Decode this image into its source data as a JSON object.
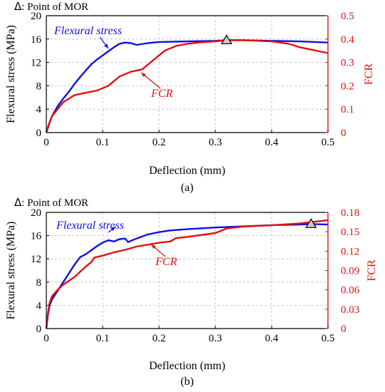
{
  "chart_data": [
    {
      "type": "line",
      "panel_label": "(a)",
      "annotation": {
        "symbol": "Δ",
        "text": ": Point of MOR"
      },
      "xlabel": "Deflection  (mm)",
      "ylabel": "Flexural  stress (MPa)",
      "y2label": "FCR",
      "xlim": [
        0,
        0.5
      ],
      "ylim": [
        0,
        20
      ],
      "y2lim": [
        0,
        0.5
      ],
      "xticks": [
        0,
        0.1,
        0.2,
        0.3,
        0.4,
        0.5
      ],
      "xtick_labels": [
        "0",
        "0.1",
        "0.2",
        "0.3",
        "0.4",
        "0.5"
      ],
      "yticks": [
        0,
        4,
        8,
        12,
        16,
        20
      ],
      "ytick_labels": [
        "0",
        "4",
        "8",
        "12",
        "16",
        "20"
      ],
      "y2ticks": [
        0,
        0.1,
        0.2,
        0.3,
        0.4,
        0.5
      ],
      "y2tick_labels": [
        "0",
        "0.1",
        "0.2",
        "0.3",
        "0.4",
        "0.5"
      ],
      "grid": true,
      "series": [
        {
          "name": "Flexural stress",
          "axis": "left",
          "color": "#1010e0",
          "x": [
            0,
            0.005,
            0.01,
            0.02,
            0.03,
            0.04,
            0.05,
            0.06,
            0.07,
            0.08,
            0.09,
            0.1,
            0.11,
            0.12,
            0.13,
            0.14,
            0.15,
            0.16,
            0.18,
            0.2,
            0.25,
            0.3,
            0.32,
            0.35,
            0.4,
            0.45,
            0.5
          ],
          "values": [
            0,
            1.5,
            2.8,
            4.5,
            5.8,
            7.0,
            8.3,
            9.5,
            10.6,
            11.7,
            12.5,
            13.2,
            13.9,
            14.6,
            15.2,
            15.4,
            15.3,
            15.0,
            15.3,
            15.5,
            15.6,
            15.7,
            15.8,
            15.8,
            15.7,
            15.6,
            15.4
          ]
        },
        {
          "name": "FCR",
          "axis": "right",
          "color": "#e01010",
          "x": [
            0,
            0.005,
            0.01,
            0.02,
            0.03,
            0.05,
            0.07,
            0.09,
            0.1,
            0.11,
            0.12,
            0.13,
            0.15,
            0.17,
            0.19,
            0.21,
            0.23,
            0.25,
            0.27,
            0.3,
            0.32,
            0.35,
            0.4,
            0.43,
            0.45,
            0.47,
            0.5
          ],
          "values": [
            0,
            0.04,
            0.07,
            0.1,
            0.13,
            0.16,
            0.17,
            0.18,
            0.19,
            0.2,
            0.22,
            0.24,
            0.26,
            0.27,
            0.31,
            0.35,
            0.37,
            0.38,
            0.385,
            0.39,
            0.395,
            0.395,
            0.39,
            0.38,
            0.365,
            0.355,
            0.34
          ]
        }
      ],
      "series_labels": [
        {
          "text": "Flexural stress",
          "series": 0
        },
        {
          "text": "FCR",
          "series": 1
        }
      ],
      "mor_point": {
        "x": 0.32,
        "y": 15.8
      }
    },
    {
      "type": "line",
      "panel_label": "(b)",
      "annotation": {
        "symbol": "Δ",
        "text": ": Point of MOR"
      },
      "xlabel": "Deflection  (mm)",
      "ylabel": "Flexural  stress (MPa)",
      "y2label": "FCR",
      "xlim": [
        0,
        0.5
      ],
      "ylim": [
        0,
        20
      ],
      "y2lim": [
        0,
        0.18
      ],
      "xticks": [
        0,
        0.1,
        0.2,
        0.3,
        0.4,
        0.5
      ],
      "xtick_labels": [
        "0",
        "0.1",
        "0.2",
        "0.3",
        "0.4",
        "0.5"
      ],
      "yticks": [
        0,
        4,
        8,
        12,
        16,
        20
      ],
      "ytick_labels": [
        "0",
        "4",
        "8",
        "12",
        "16",
        "20"
      ],
      "y2ticks": [
        0,
        0.03,
        0.06,
        0.09,
        0.12,
        0.15,
        0.18
      ],
      "y2tick_labels": [
        "0",
        "0.03",
        "0.06",
        "0.09",
        "0.12",
        "0.15",
        "0.18"
      ],
      "grid": true,
      "series": [
        {
          "name": "Flexural stress",
          "axis": "left",
          "color": "#1010e0",
          "x": [
            0,
            0.003,
            0.006,
            0.01,
            0.02,
            0.03,
            0.04,
            0.05,
            0.06,
            0.07,
            0.08,
            0.09,
            0.1,
            0.11,
            0.12,
            0.13,
            0.14,
            0.145,
            0.16,
            0.18,
            0.2,
            0.22,
            0.25,
            0.3,
            0.35,
            0.4,
            0.45,
            0.47,
            0.5
          ],
          "values": [
            0,
            2.5,
            4.0,
            5.0,
            6.5,
            8.0,
            9.5,
            11.0,
            12.3,
            12.8,
            13.5,
            14.2,
            14.8,
            15.2,
            15.0,
            15.4,
            15.5,
            14.9,
            15.5,
            16.2,
            16.6,
            16.9,
            17.1,
            17.4,
            17.6,
            17.8,
            17.9,
            18.0,
            17.9
          ]
        },
        {
          "name": "FCR",
          "axis": "right",
          "color": "#e01010",
          "x": [
            0,
            0.003,
            0.006,
            0.01,
            0.02,
            0.03,
            0.04,
            0.05,
            0.06,
            0.07,
            0.08,
            0.085,
            0.1,
            0.12,
            0.14,
            0.16,
            0.18,
            0.2,
            0.22,
            0.23,
            0.25,
            0.3,
            0.32,
            0.35,
            0.4,
            0.45,
            0.5
          ],
          "values": [
            0,
            0.025,
            0.04,
            0.05,
            0.06,
            0.068,
            0.074,
            0.08,
            0.088,
            0.096,
            0.103,
            0.11,
            0.113,
            0.118,
            0.122,
            0.127,
            0.13,
            0.133,
            0.135,
            0.14,
            0.142,
            0.148,
            0.155,
            0.158,
            0.16,
            0.163,
            0.168
          ]
        }
      ],
      "series_labels": [
        {
          "text": "Flexural stress",
          "series": 0
        },
        {
          "text": "FCR",
          "series": 1
        }
      ],
      "mor_point": {
        "x": 0.47,
        "y": 18.0
      }
    }
  ]
}
